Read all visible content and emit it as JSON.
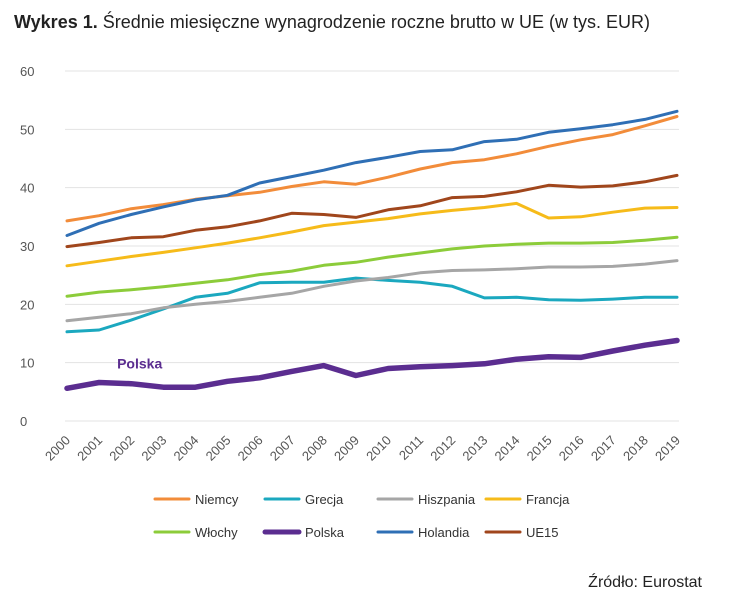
{
  "header": {
    "title_bold": "Wykres 1.",
    "title_rest": " Średnie miesięczne wynagrodzenie roczne brutto w UE (w tys. EUR)"
  },
  "footer": {
    "source": "Źródło: Eurostat"
  },
  "chart_data": {
    "type": "line",
    "title": "Wykres 1. Średnie miesięczne wynagrodzenie roczne brutto w UE (w tys. EUR)",
    "xlabel": "",
    "ylabel": "",
    "ylim": [
      0,
      60
    ],
    "yticks": [
      "0",
      "10",
      "20",
      "30",
      "40",
      "50",
      "60"
    ],
    "grid": "horizontal",
    "legend_position": "bottom",
    "categories": [
      "2000",
      "2001",
      "2002",
      "2003",
      "2004",
      "2005",
      "2006",
      "2007",
      "2008",
      "2009",
      "2010",
      "2011",
      "2012",
      "2013",
      "2014",
      "2015",
      "2016",
      "2017",
      "2018",
      "2019"
    ],
    "annotation": {
      "text": "Polska",
      "series": "Polska",
      "x": "2001"
    },
    "series": [
      {
        "name": "Niemcy",
        "color": "#f28c3a",
        "values": [
          34.3,
          35.2,
          36.4,
          37.1,
          38.0,
          38.6,
          39.2,
          40.2,
          41.0,
          40.6,
          41.8,
          43.2,
          44.3,
          44.8,
          45.8,
          47.1,
          48.2,
          49.1,
          50.6,
          52.2
        ]
      },
      {
        "name": "Grecja",
        "color": "#1ba8bf",
        "values": [
          15.3,
          15.6,
          17.3,
          19.2,
          21.2,
          21.9,
          23.7,
          23.8,
          23.8,
          24.5,
          24.1,
          23.8,
          23.1,
          21.1,
          21.2,
          20.8,
          20.7,
          20.9,
          21.2,
          21.2
        ]
      },
      {
        "name": "Hiszpania",
        "color": "#a6a6a6",
        "values": [
          17.2,
          17.8,
          18.4,
          19.4,
          20.0,
          20.5,
          21.2,
          21.9,
          23.1,
          24.0,
          24.6,
          25.4,
          25.8,
          25.9,
          26.1,
          26.4,
          26.4,
          26.5,
          26.9,
          27.5
        ]
      },
      {
        "name": "Francja",
        "color": "#f6bb1a",
        "values": [
          26.6,
          27.4,
          28.2,
          28.9,
          29.7,
          30.5,
          31.4,
          32.4,
          33.5,
          34.1,
          34.7,
          35.5,
          36.1,
          36.6,
          37.3,
          34.8,
          35.0,
          35.8,
          36.5,
          36.6
        ]
      },
      {
        "name": "Włochy",
        "color": "#8ccc3a",
        "values": [
          21.4,
          22.1,
          22.5,
          23.0,
          23.6,
          24.2,
          25.1,
          25.7,
          26.7,
          27.2,
          28.1,
          28.8,
          29.5,
          30.0,
          30.3,
          30.5,
          30.5,
          30.6,
          31.0,
          31.5
        ]
      },
      {
        "name": "Polska",
        "color": "#5b2d90",
        "values": [
          5.6,
          6.6,
          6.4,
          5.8,
          5.8,
          6.8,
          7.4,
          8.5,
          9.5,
          7.8,
          9.0,
          9.3,
          9.5,
          9.8,
          10.6,
          11.0,
          10.9,
          12.0,
          13.0,
          13.8
        ]
      },
      {
        "name": "Holandia",
        "color": "#2f6fb5",
        "values": [
          31.8,
          33.9,
          35.4,
          36.7,
          37.9,
          38.7,
          40.8,
          41.9,
          43.0,
          44.3,
          45.2,
          46.2,
          46.5,
          47.9,
          48.3,
          49.5,
          50.1,
          50.8,
          51.7,
          53.1
        ]
      },
      {
        "name": "UE15",
        "color": "#a0461c",
        "values": [
          29.9,
          30.6,
          31.4,
          31.6,
          32.7,
          33.3,
          34.3,
          35.6,
          35.4,
          34.9,
          36.2,
          36.9,
          38.3,
          38.5,
          39.3,
          40.4,
          40.1,
          40.3,
          41.0,
          42.1
        ]
      }
    ]
  }
}
